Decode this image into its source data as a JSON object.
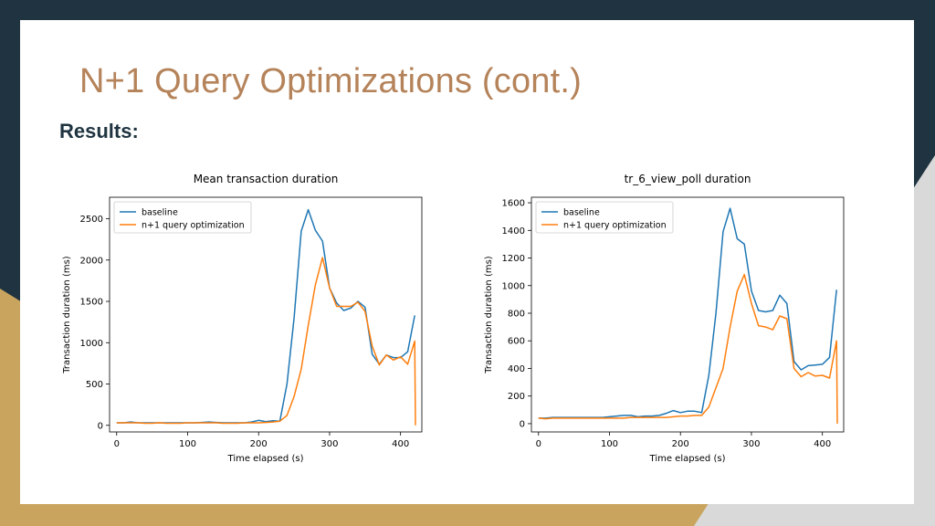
{
  "slide": {
    "title": "N+1 Query Optimizations (cont.)",
    "subtitle": "Results:"
  },
  "colors": {
    "baseline": "#1f77b4",
    "optimized": "#ff7f0e",
    "title": "#b5835a",
    "dark": "#1f3440",
    "gold": "#c9a45e"
  },
  "chart_data": [
    {
      "type": "line",
      "title": "Mean transaction duration",
      "xlabel": "Time elapsed (s)",
      "ylabel": "Transaction duration (ms)",
      "xlim": [
        -10,
        430
      ],
      "ylim": [
        -80,
        2760
      ],
      "xticks": [
        0,
        100,
        200,
        300,
        400
      ],
      "yticks": [
        0,
        500,
        1000,
        1500,
        2000,
        2500
      ],
      "legend": [
        "baseline",
        "n+1 query optimization"
      ],
      "series": [
        {
          "name": "baseline",
          "x": [
            0,
            10,
            20,
            30,
            40,
            50,
            60,
            70,
            80,
            90,
            100,
            110,
            120,
            130,
            140,
            150,
            160,
            170,
            180,
            190,
            200,
            210,
            220,
            230,
            240,
            250,
            260,
            270,
            280,
            290,
            300,
            310,
            320,
            330,
            340,
            350,
            360,
            370,
            380,
            390,
            400,
            410,
            420
          ],
          "y": [
            30,
            30,
            40,
            30,
            30,
            30,
            30,
            30,
            30,
            30,
            30,
            30,
            35,
            40,
            35,
            30,
            30,
            30,
            30,
            40,
            60,
            45,
            55,
            50,
            500,
            1300,
            2350,
            2610,
            2360,
            2230,
            1660,
            1480,
            1390,
            1420,
            1500,
            1430,
            860,
            740,
            850,
            820,
            820,
            890,
            1330
          ]
        },
        {
          "name": "n+1 query optimization",
          "x": [
            0,
            10,
            20,
            30,
            40,
            50,
            60,
            70,
            80,
            90,
            100,
            110,
            120,
            130,
            140,
            150,
            160,
            170,
            180,
            190,
            200,
            210,
            220,
            230,
            240,
            250,
            260,
            270,
            280,
            290,
            300,
            310,
            320,
            330,
            340,
            350,
            360,
            370,
            380,
            390,
            400,
            410,
            420,
            421
          ],
          "y": [
            30,
            30,
            30,
            30,
            25,
            25,
            30,
            25,
            25,
            25,
            30,
            30,
            30,
            30,
            30,
            25,
            25,
            25,
            30,
            30,
            30,
            35,
            40,
            50,
            120,
            350,
            680,
            1210,
            1700,
            2030,
            1660,
            1440,
            1440,
            1440,
            1490,
            1380,
            960,
            730,
            850,
            790,
            830,
            740,
            1020,
            0
          ]
        }
      ]
    },
    {
      "type": "line",
      "title": "tr_6_view_poll duration",
      "xlabel": "Time elapsed (s)",
      "ylabel": "Transaction duration (ms)",
      "xlim": [
        -10,
        430
      ],
      "ylim": [
        -60,
        1640
      ],
      "xticks": [
        0,
        100,
        200,
        300,
        400
      ],
      "yticks": [
        0,
        200,
        400,
        600,
        800,
        1000,
        1200,
        1400,
        1600
      ],
      "legend": [
        "baseline",
        "n+1 query optimization"
      ],
      "series": [
        {
          "name": "baseline",
          "x": [
            0,
            10,
            20,
            30,
            40,
            50,
            60,
            70,
            80,
            90,
            100,
            110,
            120,
            130,
            140,
            150,
            160,
            170,
            180,
            190,
            200,
            210,
            220,
            230,
            240,
            250,
            260,
            270,
            280,
            290,
            300,
            310,
            320,
            330,
            340,
            350,
            360,
            370,
            380,
            390,
            400,
            410,
            420
          ],
          "y": [
            40,
            40,
            45,
            45,
            45,
            45,
            45,
            45,
            45,
            45,
            50,
            55,
            60,
            60,
            50,
            55,
            55,
            60,
            75,
            95,
            80,
            90,
            90,
            80,
            350,
            800,
            1390,
            1560,
            1340,
            1300,
            960,
            820,
            810,
            820,
            930,
            870,
            450,
            390,
            420,
            425,
            430,
            480,
            970
          ]
        },
        {
          "name": "n+1 query optimization",
          "x": [
            0,
            10,
            20,
            30,
            40,
            50,
            60,
            70,
            80,
            90,
            100,
            110,
            120,
            130,
            140,
            150,
            160,
            170,
            180,
            190,
            200,
            210,
            220,
            230,
            240,
            250,
            260,
            270,
            280,
            290,
            300,
            310,
            320,
            330,
            340,
            350,
            360,
            370,
            380,
            390,
            400,
            410,
            420,
            421
          ],
          "y": [
            40,
            35,
            40,
            40,
            40,
            40,
            40,
            40,
            40,
            40,
            40,
            40,
            40,
            45,
            45,
            45,
            45,
            45,
            45,
            50,
            55,
            55,
            60,
            60,
            120,
            260,
            400,
            700,
            960,
            1080,
            870,
            710,
            700,
            680,
            780,
            760,
            400,
            340,
            370,
            345,
            350,
            330,
            600,
            0
          ]
        }
      ]
    }
  ]
}
